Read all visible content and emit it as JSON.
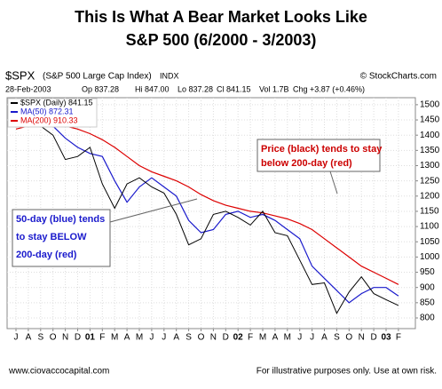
{
  "chart_data": {
    "type": "line",
    "title": "This Is What A Bear Market Looks Like",
    "subtitle": "S&P 500 (6/2000 - 3/2003)",
    "symbol": "$SPX",
    "symbol_name": "(S&P 500 Large Cap Index)",
    "exchange": "INDX",
    "source": "© StockCharts.com",
    "quote": [
      "28-Feb-2003",
      "Op 837.28",
      "Hi 847.00",
      "Lo 837.28",
      "Cl 841.15",
      "Vol 1.7B",
      "Chg +3.87 (+0.46%)"
    ],
    "categories": [
      "J",
      "A",
      "S",
      "O",
      "N",
      "D",
      "01",
      "F",
      "M",
      "A",
      "M",
      "J",
      "J",
      "A",
      "S",
      "O",
      "N",
      "D",
      "02",
      "F",
      "M",
      "A",
      "M",
      "J",
      "J",
      "A",
      "S",
      "O",
      "N",
      "D",
      "03",
      "F"
    ],
    "series": [
      {
        "name": "$SPX (Daily) 841.15",
        "color": "#000000",
        "values": [
          1430,
          1460,
          1430,
          1400,
          1320,
          1330,
          1360,
          1240,
          1160,
          1240,
          1260,
          1230,
          1210,
          1140,
          1040,
          1060,
          1140,
          1150,
          1130,
          1105,
          1150,
          1080,
          1070,
          990,
          910,
          915,
          815,
          885,
          935,
          880,
          860,
          841
        ]
      },
      {
        "name": "MA(50) 872.31",
        "color": "#1a1acc",
        "values": [
          1450,
          1470,
          1470,
          1430,
          1390,
          1360,
          1340,
          1330,
          1250,
          1180,
          1230,
          1260,
          1230,
          1200,
          1120,
          1080,
          1090,
          1140,
          1150,
          1130,
          1140,
          1120,
          1090,
          1060,
          970,
          930,
          890,
          850,
          880,
          900,
          900,
          872
        ]
      },
      {
        "name": "MA(200) 910.33",
        "color": "#dd0000",
        "values": [
          1420,
          1430,
          1440,
          1435,
          1430,
          1420,
          1405,
          1385,
          1360,
          1330,
          1300,
          1280,
          1265,
          1250,
          1230,
          1205,
          1185,
          1170,
          1160,
          1150,
          1145,
          1135,
          1125,
          1110,
          1090,
          1060,
          1030,
          1000,
          970,
          950,
          930,
          910
        ]
      }
    ],
    "ylim": [
      765,
      1523
    ],
    "yticks": [
      800,
      850,
      900,
      950,
      1000,
      1050,
      1100,
      1150,
      1200,
      1250,
      1300,
      1350,
      1400,
      1450,
      1500
    ],
    "grid": true,
    "annotations": [
      {
        "lines": [
          "50-day (blue) tends",
          "to stay BELOW",
          "200-day (red)"
        ],
        "color": "#1a1acc"
      },
      {
        "lines": [
          "Price (black) tends to stay",
          "below 200-day (red)"
        ],
        "color": "#cc0000"
      }
    ],
    "footer_left": "www.ciovaccocapital.com",
    "footer_right": "For illustrative purposes only.  Use at own risk."
  }
}
